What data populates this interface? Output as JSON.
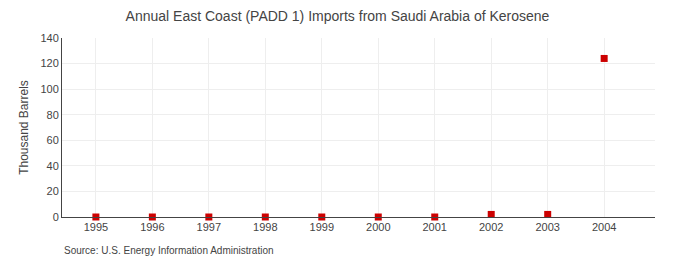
{
  "chart_data": {
    "type": "scatter",
    "title": "Annual East Coast (PADD 1) Imports from Saudi Arabia of Kerosene",
    "ylabel": "Thousand Barrels",
    "annotations": [
      "Source: U.S. Energy Information Administration"
    ],
    "x": [
      1995,
      1996,
      1997,
      1998,
      1999,
      2000,
      2001,
      2002,
      2003,
      2004
    ],
    "values": [
      0,
      0,
      0,
      0,
      0,
      0,
      0,
      2,
      2,
      124
    ],
    "color": "#cc0000",
    "marker": "square",
    "xlim": [
      1994.4,
      2004.9
    ],
    "xticks": [
      1995,
      1996,
      1997,
      1998,
      1999,
      2000,
      2001,
      2002,
      2003,
      2004
    ],
    "ylim": [
      0,
      140
    ],
    "yticks": [
      0,
      20,
      40,
      60,
      80,
      100,
      120,
      140
    ],
    "grid": true
  }
}
